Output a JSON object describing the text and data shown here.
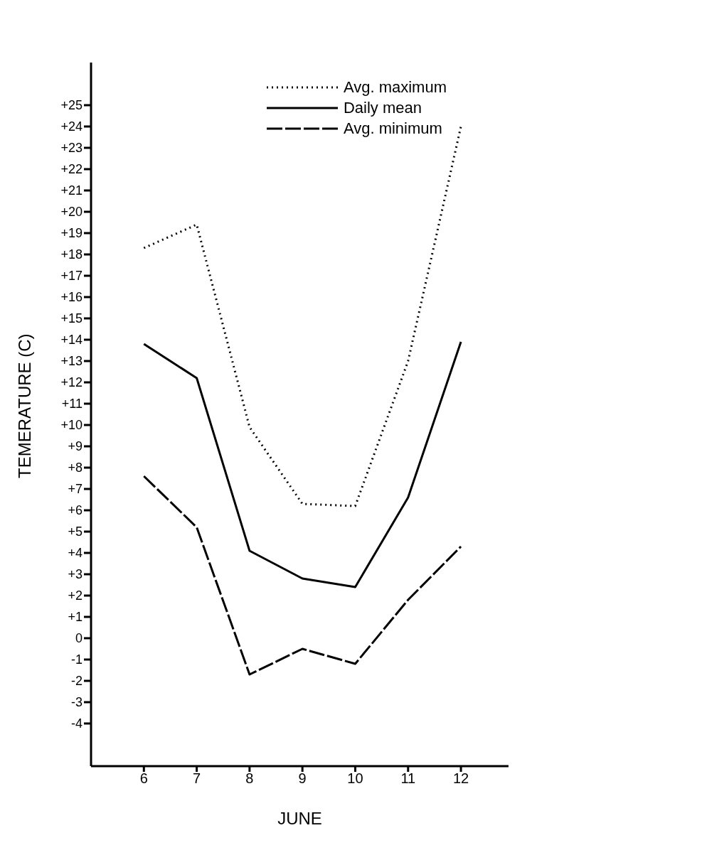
{
  "chart_data": {
    "type": "line",
    "xlabel": "JUNE",
    "ylabel": "TEMERATURE (C)",
    "x": [
      6,
      7,
      8,
      9,
      10,
      11,
      12
    ],
    "series": [
      {
        "name": "Avg. maximum",
        "color": "#000000",
        "line_style": "dotted",
        "values": [
          18.3,
          19.4,
          9.9,
          6.3,
          6.2,
          13,
          24
        ]
      },
      {
        "name": "Daily mean",
        "color": "#000000",
        "line_style": "solid",
        "values": [
          13.8,
          12.2,
          4.1,
          2.8,
          2.4,
          6.6,
          13.9
        ]
      },
      {
        "name": "Avg. minimum",
        "color": "#000000",
        "line_style": "dashed",
        "values": [
          7.6,
          5.2,
          -1.7,
          -0.5,
          -1.2,
          1.8,
          4.3
        ]
      }
    ],
    "xlim": [
      5,
      12.9
    ],
    "xticks": [
      6,
      7,
      8,
      9,
      10,
      11,
      12
    ],
    "ylim": [
      -6,
      27
    ],
    "yticks": [
      {
        "value": -4,
        "label": "-4"
      },
      {
        "value": -3,
        "label": "-3"
      },
      {
        "value": -2,
        "label": "-2"
      },
      {
        "value": -1,
        "label": "-1"
      },
      0,
      {
        "value": 1,
        "label": "+1"
      },
      {
        "value": 2,
        "label": "+2"
      },
      {
        "value": 3,
        "label": "+3"
      },
      {
        "value": 4,
        "label": "+4"
      },
      {
        "value": 5,
        "label": "+5"
      },
      {
        "value": 6,
        "label": "+6"
      },
      {
        "value": 7,
        "label": "+7"
      },
      {
        "value": 8,
        "label": "+8"
      },
      {
        "value": 9,
        "label": "+9"
      },
      {
        "value": 10,
        "label": "+10"
      },
      {
        "value": 11,
        "label": "+11"
      },
      {
        "value": 12,
        "label": "+12"
      },
      {
        "value": 13,
        "label": "+13"
      },
      {
        "value": 14,
        "label": "+14"
      },
      {
        "value": 15,
        "label": "+15"
      },
      {
        "value": 16,
        "label": "+16"
      },
      {
        "value": 17,
        "label": "+17"
      },
      {
        "value": 18,
        "label": "+18"
      },
      {
        "value": 19,
        "label": "+19"
      },
      {
        "value": 20,
        "label": "+20"
      },
      {
        "value": 21,
        "label": "+21"
      },
      {
        "value": 22,
        "label": "+22"
      },
      {
        "value": 23,
        "label": "+23"
      },
      {
        "value": 24,
        "label": "+24"
      },
      {
        "value": 25,
        "label": "+25"
      }
    ],
    "grid": false,
    "legend": "top right",
    "marker": "none"
  }
}
